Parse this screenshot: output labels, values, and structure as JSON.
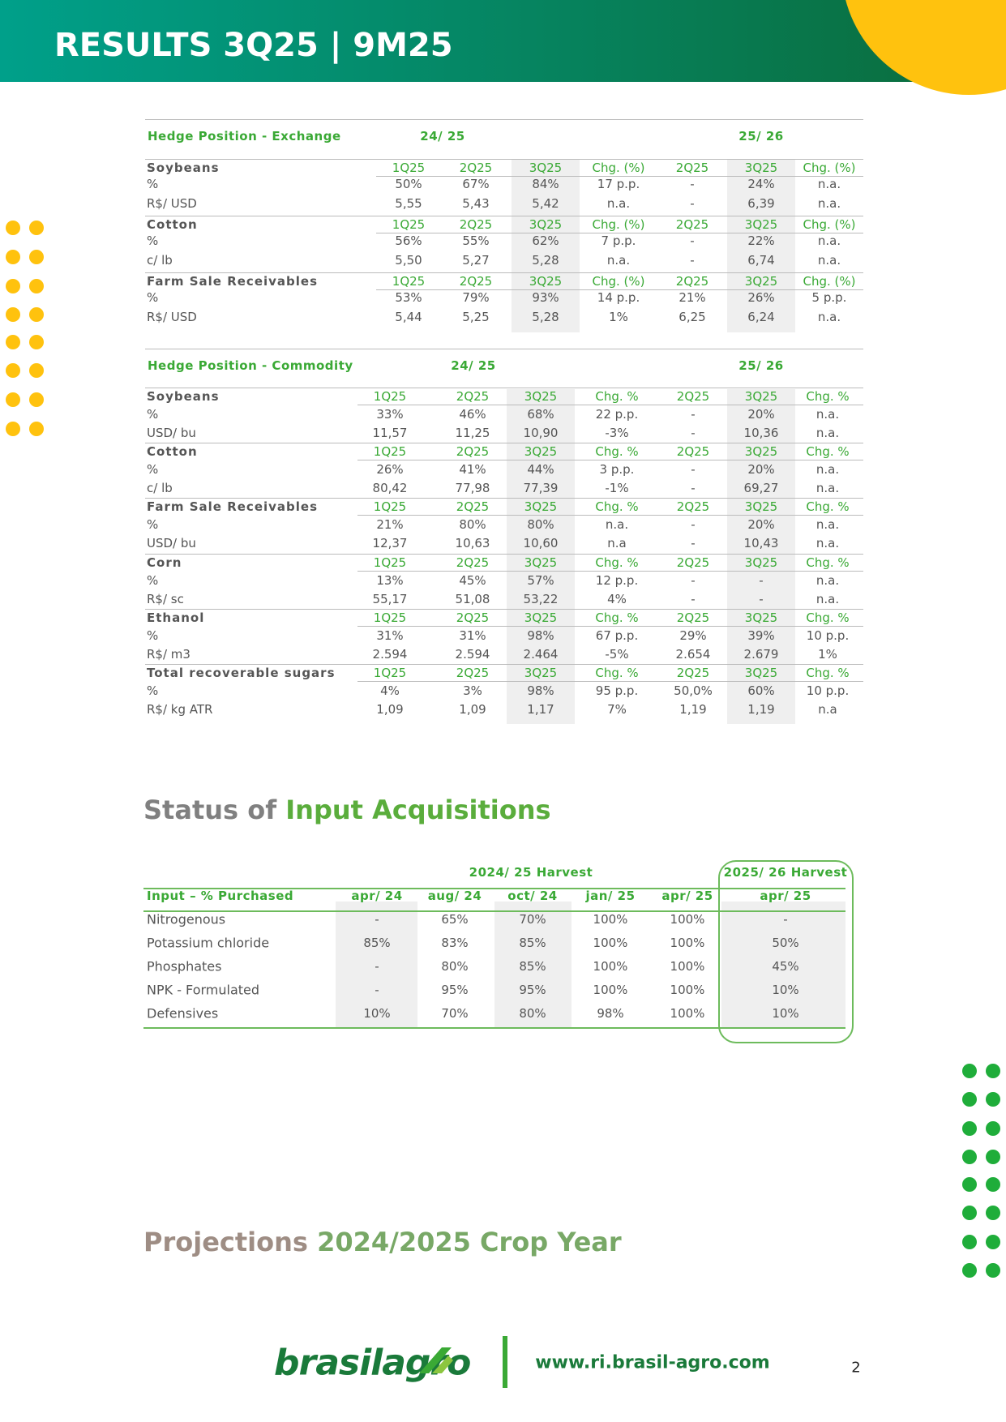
{
  "header": {
    "title": "RESULTS 3Q25 | 9M25"
  },
  "hedge_exchange": {
    "title": "Hedge Position - Exchange",
    "periods": [
      "24/ 25",
      "25/ 26"
    ],
    "groups": [
      {
        "columns": [
          "Soybeans",
          "1Q25",
          "2Q25",
          "3Q25",
          "Chg. (%)",
          "2Q25",
          "3Q25",
          "Chg. (%)"
        ],
        "rows": [
          [
            "%",
            "50%",
            "67%",
            "84%",
            "17 p.p.",
            "-",
            "24%",
            "n.a."
          ],
          [
            "R$/ USD",
            "5,55",
            "5,43",
            "5,42",
            "n.a.",
            "-",
            "6,39",
            "n.a."
          ]
        ]
      },
      {
        "columns": [
          "Cotton",
          "1Q25",
          "2Q25",
          "3Q25",
          "Chg. (%)",
          "2Q25",
          "3Q25",
          "Chg. (%)"
        ],
        "rows": [
          [
            "%",
            "56%",
            "55%",
            "62%",
            "7 p.p.",
            "-",
            "22%",
            "n.a."
          ],
          [
            "c/ lb",
            "5,50",
            "5,27",
            "5,28",
            "n.a.",
            "-",
            "6,74",
            "n.a."
          ]
        ]
      },
      {
        "columns": [
          "Farm Sale Receivables",
          "1Q25",
          "2Q25",
          "3Q25",
          "Chg. (%)",
          "2Q25",
          "3Q25",
          "Chg. (%)"
        ],
        "rows": [
          [
            "%",
            "53%",
            "79%",
            "93%",
            "14 p.p.",
            "21%",
            "26%",
            "5 p.p."
          ],
          [
            "R$/ USD",
            "5,44",
            "5,25",
            "5,28",
            "1%",
            "6,25",
            "6,24",
            "n.a."
          ]
        ]
      }
    ]
  },
  "hedge_commodity": {
    "title": "Hedge Position - Commodity",
    "periods": [
      "24/ 25",
      "25/ 26"
    ],
    "groups": [
      {
        "columns": [
          "Soybeans",
          "1Q25",
          "2Q25",
          "3Q25",
          "Chg. %",
          "2Q25",
          "3Q25",
          "Chg. %"
        ],
        "rows": [
          [
            "%",
            "33%",
            "46%",
            "68%",
            "22 p.p.",
            "-",
            "20%",
            "n.a."
          ],
          [
            "USD/ bu",
            "11,57",
            "11,25",
            "10,90",
            "-3%",
            "-",
            "10,36",
            "n.a."
          ]
        ]
      },
      {
        "columns": [
          "Cotton",
          "1Q25",
          "2Q25",
          "3Q25",
          "Chg. %",
          "2Q25",
          "3Q25",
          "Chg. %"
        ],
        "rows": [
          [
            "%",
            "26%",
            "41%",
            "44%",
            "3 p.p.",
            "-",
            "20%",
            "n.a."
          ],
          [
            "c/ lb",
            "80,42",
            "77,98",
            "77,39",
            "-1%",
            "-",
            "69,27",
            "n.a."
          ]
        ]
      },
      {
        "columns": [
          "Farm Sale Receivables",
          "1Q25",
          "2Q25",
          "3Q25",
          "Chg. %",
          "2Q25",
          "3Q25",
          "Chg. %"
        ],
        "rows": [
          [
            "%",
            "21%",
            "80%",
            "80%",
            "n.a.",
            "-",
            "20%",
            "n.a."
          ],
          [
            "USD/ bu",
            "12,37",
            "10,63",
            "10,60",
            "n.a",
            "-",
            "10,43",
            "n.a."
          ]
        ]
      },
      {
        "columns": [
          "Corn",
          "1Q25",
          "2Q25",
          "3Q25",
          "Chg. %",
          "2Q25",
          "3Q25",
          "Chg. %"
        ],
        "rows": [
          [
            "%",
            "13%",
            "45%",
            "57%",
            "12 p.p.",
            "-",
            "-",
            "n.a."
          ],
          [
            "R$/ sc",
            "55,17",
            "51,08",
            "53,22",
            "4%",
            "-",
            "-",
            "n.a."
          ]
        ]
      },
      {
        "columns": [
          "Ethanol",
          "1Q25",
          "2Q25",
          "3Q25",
          "Chg. %",
          "2Q25",
          "3Q25",
          "Chg. %"
        ],
        "rows": [
          [
            "%",
            "31%",
            "31%",
            "98%",
            "67 p.p.",
            "29%",
            "39%",
            "10 p.p."
          ],
          [
            "R$/ m3",
            "2.594",
            "2.594",
            "2.464",
            "-5%",
            "2.654",
            "2.679",
            "1%"
          ]
        ]
      },
      {
        "columns": [
          "Total recoverable sugars",
          "1Q25",
          "2Q25",
          "3Q25",
          "Chg. %",
          "2Q25",
          "3Q25",
          "Chg. %"
        ],
        "rows": [
          [
            "%",
            "4%",
            "3%",
            "98%",
            "95 p.p.",
            "50,0%",
            "60%",
            "10 p.p."
          ],
          [
            "R$/ kg ATR",
            "1,09",
            "1,09",
            "1,17",
            "7%",
            "1,19",
            "1,19",
            "n.a"
          ]
        ]
      }
    ]
  },
  "inputs": {
    "title_lead": "Status of ",
    "title_highlight": "Input Acquisitions",
    "harvests": [
      "2024/ 25 Harvest",
      "2025/ 26 Harvest"
    ],
    "columns": [
      "Input – % Purchased",
      "apr/ 24",
      "aug/ 24",
      "oct/ 24",
      "jan/ 25",
      "apr/ 25",
      "apr/ 25"
    ],
    "rows": [
      [
        "Nitrogenous",
        "-",
        "65%",
        "70%",
        "100%",
        "100%",
        "-"
      ],
      [
        "Potassium chloride",
        "85%",
        "83%",
        "85%",
        "100%",
        "100%",
        "50%"
      ],
      [
        "Phosphates",
        "-",
        "80%",
        "85%",
        "100%",
        "100%",
        "45%"
      ],
      [
        "NPK - Formulated",
        "-",
        "95%",
        "95%",
        "100%",
        "100%",
        "10%"
      ],
      [
        "Defensives",
        "10%",
        "70%",
        "80%",
        "98%",
        "100%",
        "10%"
      ]
    ]
  },
  "projections": {
    "title_lead": "Projections ",
    "title_highlight": "2024/2025 Crop Year"
  },
  "footer": {
    "logo": "brasilagro",
    "url": "www.ri.brasil-agro.com",
    "page": "2"
  }
}
